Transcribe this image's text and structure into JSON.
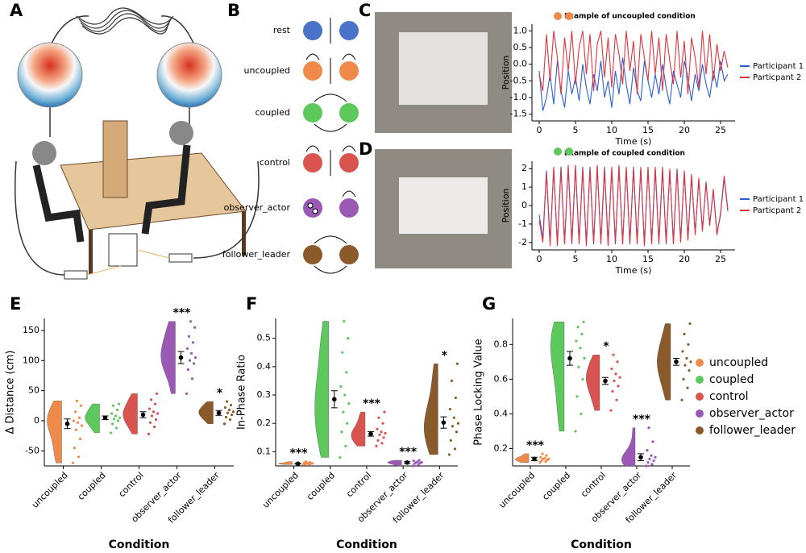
{
  "panels": [
    "A",
    "B",
    "C",
    "D",
    "E",
    "F",
    "G"
  ],
  "diagram": {
    "conditions": [
      "rest",
      "uncoupled",
      "coupled",
      "control",
      "observer_actor",
      "follower_leader"
    ],
    "colors": [
      "#4a72c8",
      "#f08a4b",
      "#5dc95d",
      "#d9534f",
      "#9b59b6",
      "#8b5a2b"
    ]
  },
  "chart_data": [
    {
      "type": "line",
      "title": "Example of uncoupled condition",
      "xlabel": "Time (s)",
      "ylabel": "Position",
      "x": [
        0,
        0.5,
        1,
        1.5,
        2,
        2.5,
        3,
        3.5,
        4,
        4.5,
        5,
        5.5,
        6,
        6.5,
        7,
        7.5,
        8,
        8.5,
        9,
        9.5,
        10,
        10.5,
        11,
        11.5,
        12,
        12.5,
        13,
        13.5,
        14,
        14.5,
        15,
        15.5,
        16,
        16.5,
        17,
        17.5,
        18,
        18.5,
        19,
        19.5,
        20,
        20.5,
        21,
        21.5,
        22,
        22.5,
        23,
        23.5,
        24,
        24.5,
        25,
        25.5,
        26
      ],
      "series": [
        {
          "name": "Participant 1",
          "color": "#2b5fd9",
          "values": [
            -0.2,
            -1.4,
            -1.0,
            -0.3,
            -1.2,
            0.1,
            -0.8,
            -1.3,
            -0.2,
            -0.9,
            -0.4,
            -1.1,
            0.0,
            -0.7,
            -1.2,
            -0.3,
            -0.8,
            0.1,
            -1.0,
            -0.5,
            -1.3,
            -0.2,
            -0.9,
            0.2,
            -0.6,
            -1.2,
            -0.1,
            -0.8,
            -1.1,
            0.1,
            -0.5,
            -1.0,
            -0.3,
            -0.9,
            0.0,
            -0.7,
            -1.2,
            -0.2,
            -0.6,
            -1.0,
            0.1,
            -0.4,
            -1.1,
            -0.3,
            -0.8,
            0.0,
            -0.6,
            -1.0,
            -0.2,
            -0.7,
            0.1,
            -0.5,
            -0.3
          ]
        },
        {
          "name": "Particpant 2",
          "color": "#e0343f",
          "values": [
            -0.3,
            -0.8,
            0.9,
            -0.5,
            1.0,
            0.2,
            -0.9,
            0.8,
            -0.2,
            1.0,
            -0.6,
            0.5,
            1.0,
            -0.3,
            0.9,
            -0.8,
            0.6,
            1.0,
            -0.4,
            0.8,
            -0.7,
            0.9,
            0.3,
            -0.6,
            1.0,
            -0.2,
            0.7,
            -0.9,
            0.9,
            0.2,
            -0.5,
            1.0,
            -0.3,
            0.8,
            -0.8,
            0.9,
            0.1,
            -0.6,
            1.0,
            -0.4,
            0.7,
            -0.9,
            0.8,
            0.2,
            -0.7,
            1.0,
            -0.3,
            0.9,
            -0.5,
            0.6,
            -0.2,
            0.4,
            -0.1
          ]
        }
      ],
      "xlim": [
        -1,
        27
      ],
      "xticks": [
        0,
        5,
        10,
        15,
        20,
        25
      ],
      "ylim": [
        -1.7,
        1.2
      ],
      "yticks": [
        -1.5,
        {
          "value": -1,
          "label": "-1.0"
        },
        -0.5,
        {
          "value": 0,
          "label": "0.0"
        },
        0.5,
        {
          "value": 1,
          "label": "1.0"
        }
      ],
      "legend": "right"
    },
    {
      "type": "line",
      "title": "Example of coupled condition",
      "xlabel": "Time (s)",
      "ylabel": "Position",
      "x": [
        0,
        0.5,
        1,
        1.5,
        2,
        2.5,
        3,
        3.5,
        4,
        4.5,
        5,
        5.5,
        6,
        6.5,
        7,
        7.5,
        8,
        8.5,
        9,
        9.5,
        10,
        10.5,
        11,
        11.5,
        12,
        12.5,
        13,
        13.5,
        14,
        14.5,
        15,
        15.5,
        16,
        16.5,
        17,
        17.5,
        18,
        18.5,
        19,
        19.5,
        20,
        20.5,
        21,
        21.5,
        22,
        22.5,
        23,
        23.5,
        24,
        24.5,
        25,
        25.5,
        26
      ],
      "series": [
        {
          "name": "Participant 1",
          "color": "#2b5fd9",
          "values": [
            -0.5,
            -1.8,
            1.9,
            -2.0,
            2.0,
            -2.1,
            2.1,
            -2.0,
            2.1,
            -2.1,
            2.1,
            -2.0,
            2.1,
            -2.1,
            2.0,
            -2.1,
            2.1,
            -2.0,
            2.1,
            -2.1,
            2.0,
            -2.1,
            2.1,
            -2.0,
            2.0,
            -2.1,
            2.1,
            -2.0,
            2.0,
            -2.1,
            2.0,
            -2.0,
            2.0,
            -2.1,
            2.0,
            -2.0,
            1.9,
            -2.0,
            2.0,
            -1.9,
            1.8,
            -1.8,
            1.6,
            -1.5,
            1.4,
            -1.3,
            1.2,
            -1.0,
            0.8,
            -1.5,
            -0.5,
            1.5,
            -0.3
          ]
        },
        {
          "name": "Particpant 2",
          "color": "#e0343f",
          "values": [
            -0.8,
            -2.0,
            1.8,
            -2.2,
            2.1,
            -2.2,
            2.0,
            -2.1,
            2.2,
            -2.0,
            2.2,
            -2.1,
            2.0,
            -2.2,
            2.1,
            -2.0,
            2.2,
            -2.1,
            2.0,
            -2.2,
            2.1,
            -2.0,
            2.2,
            -2.1,
            2.1,
            -2.0,
            2.0,
            -2.1,
            2.1,
            -2.2,
            2.1,
            -2.1,
            2.1,
            -2.0,
            2.1,
            -2.1,
            2.0,
            -2.1,
            1.9,
            -2.0,
            1.9,
            -1.9,
            1.7,
            -1.6,
            1.5,
            -1.4,
            1.3,
            -1.1,
            0.9,
            -1.6,
            -0.4,
            1.6,
            -0.2
          ]
        }
      ],
      "xlim": [
        -1,
        27
      ],
      "xticks": [
        0,
        5,
        10,
        15,
        20,
        25
      ],
      "ylim": [
        -2.4,
        2.4
      ],
      "yticks": [
        -2,
        -1,
        0,
        1,
        2
      ],
      "legend": "right"
    },
    {
      "type": "raincloud",
      "ylabel": "Δ Distance (cm)",
      "xlabel": "Condition",
      "categories": [
        "uncoupled",
        "coupled",
        "control",
        "observer_actor",
        "follower_leader"
      ],
      "colors": [
        "#f08a4b",
        "#5dc95d",
        "#d9534f",
        "#9b59b6",
        "#8b5a2b"
      ],
      "points": [
        [
          -70,
          -60,
          -45,
          -30,
          -15,
          -8,
          -3,
          0,
          5,
          15,
          25,
          33
        ],
        [
          -20,
          -12,
          -5,
          0,
          3,
          5,
          8,
          12,
          18,
          25,
          28
        ],
        [
          -22,
          -10,
          -3,
          2,
          8,
          12,
          15,
          20,
          28,
          35,
          45
        ],
        [
          45,
          70,
          85,
          95,
          100,
          105,
          112,
          120,
          130,
          140,
          155,
          165
        ],
        [
          -5,
          2,
          6,
          10,
          13,
          15,
          18,
          22,
          26,
          32
        ]
      ],
      "means": [
        -5,
        5,
        10,
        105,
        13
      ],
      "errors": [
        8,
        3,
        5,
        10,
        4
      ],
      "significance": [
        null,
        null,
        null,
        "***",
        "*"
      ],
      "ylim": [
        -75,
        170
      ],
      "yticks": [
        -50,
        0,
        50,
        100,
        150
      ],
      "legend": false
    },
    {
      "type": "raincloud",
      "ylabel": "In-Phase Ratio",
      "xlabel": "Condition",
      "categories": [
        "uncoupled",
        "coupled",
        "control",
        "observer_actor",
        "follower_leader"
      ],
      "colors": [
        "#f08a4b",
        "#5dc95d",
        "#d9534f",
        "#9b59b6",
        "#8b5a2b"
      ],
      "points": [
        [
          0.055,
          0.056,
          0.057,
          0.058,
          0.058,
          0.059,
          0.06,
          0.061,
          0.063,
          0.065
        ],
        [
          0.08,
          0.12,
          0.17,
          0.2,
          0.24,
          0.27,
          0.3,
          0.33,
          0.38,
          0.45,
          0.5,
          0.56
        ],
        [
          0.12,
          0.13,
          0.14,
          0.15,
          0.16,
          0.165,
          0.17,
          0.18,
          0.2,
          0.22,
          0.24
        ],
        [
          0.05,
          0.055,
          0.058,
          0.06,
          0.062,
          0.063,
          0.065,
          0.068,
          0.07
        ],
        [
          0.09,
          0.11,
          0.14,
          0.17,
          0.19,
          0.2,
          0.22,
          0.25,
          0.29,
          0.35,
          0.41
        ]
      ],
      "means": [
        0.058,
        0.285,
        0.163,
        0.062,
        0.203
      ],
      "errors": [
        0.002,
        0.03,
        0.008,
        0.003,
        0.02
      ],
      "significance": [
        "***",
        null,
        "***",
        "***",
        "*"
      ],
      "ylim": [
        0.05,
        0.57
      ],
      "yticks": [
        0.1,
        0.2,
        0.3,
        0.4,
        0.5
      ],
      "legend": false
    },
    {
      "type": "raincloud",
      "ylabel": "Phase Locking Value",
      "xlabel": "Condition",
      "categories": [
        "uncoupled",
        "coupled",
        "control",
        "observer_actor",
        "follower_leader"
      ],
      "colors": [
        "#f08a4b",
        "#5dc95d",
        "#d9534f",
        "#9b59b6",
        "#8b5a2b"
      ],
      "points": [
        [
          0.12,
          0.125,
          0.13,
          0.135,
          0.14,
          0.14,
          0.145,
          0.15,
          0.16,
          0.17
        ],
        [
          0.3,
          0.4,
          0.5,
          0.6,
          0.67,
          0.72,
          0.78,
          0.82,
          0.86,
          0.9,
          0.93
        ],
        [
          0.42,
          0.48,
          0.53,
          0.56,
          0.59,
          0.61,
          0.63,
          0.66,
          0.7,
          0.74
        ],
        [
          0.1,
          0.11,
          0.12,
          0.13,
          0.14,
          0.15,
          0.16,
          0.19,
          0.24,
          0.32
        ],
        [
          0.48,
          0.55,
          0.6,
          0.65,
          0.68,
          0.7,
          0.72,
          0.76,
          0.8,
          0.86,
          0.92
        ]
      ],
      "means": [
        0.14,
        0.72,
        0.59,
        0.15,
        0.7
      ],
      "errors": [
        0.01,
        0.04,
        0.02,
        0.02,
        0.02
      ],
      "significance": [
        "***",
        null,
        "*",
        "***",
        null
      ],
      "ylim": [
        0.1,
        0.95
      ],
      "yticks": [
        0.2,
        0.4,
        0.6,
        0.8
      ],
      "legend": true
    }
  ]
}
